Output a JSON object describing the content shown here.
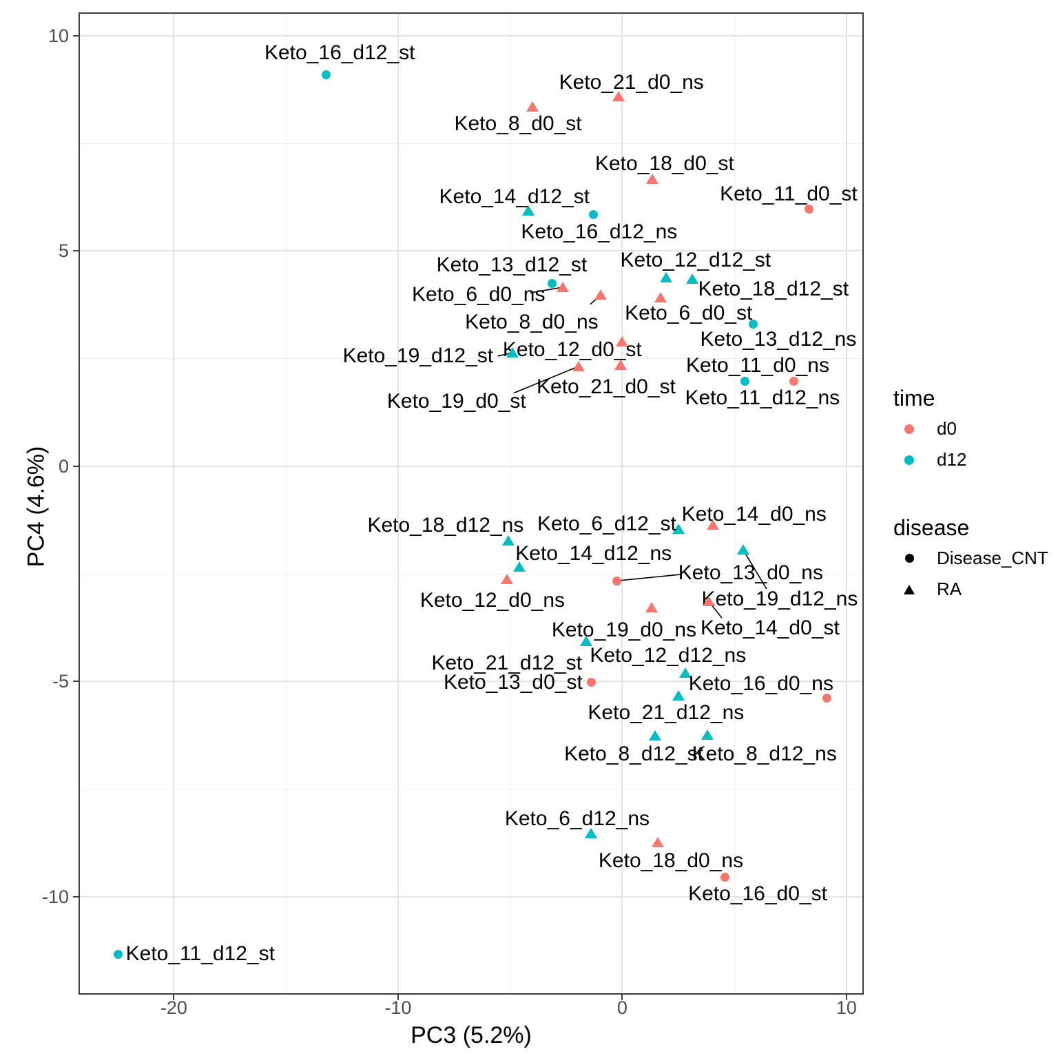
{
  "chart_data": {
    "type": "scatter",
    "xlabel": "PC3 (5.2%)",
    "ylabel": "PC4 (4.6%)",
    "xlim": [
      -24.19,
      10.71
    ],
    "ylim": [
      -12.24,
      10.51
    ],
    "x_major_ticks": [
      -20,
      -10,
      0,
      10
    ],
    "y_major_ticks": [
      10,
      5,
      0,
      -5,
      -10
    ],
    "x_minor_ticks": [
      -15,
      -5,
      5
    ],
    "y_minor_ticks": [
      7.5,
      2.5,
      -2.5,
      -7.5
    ],
    "grid": true,
    "legend_position": "right",
    "colors": {
      "d0": "#F8766D",
      "d12": "#00BFC4"
    },
    "points": [
      {
        "id": "Keto_16_d12_st",
        "pc3": -13.2,
        "pc4": 9.1,
        "time": "d12",
        "disease": "Disease_CNT",
        "label": {
          "x": -12.6,
          "y": 9.6
        }
      },
      {
        "id": "Keto_21_d0_ns",
        "pc3": -0.17,
        "pc4": 8.59,
        "time": "d0",
        "disease": "RA",
        "label": {
          "x": 0.41,
          "y": 8.91
        }
      },
      {
        "id": "Keto_8_d0_st",
        "pc3": -4.01,
        "pc4": 8.35,
        "time": "d0",
        "disease": "RA",
        "label": {
          "x": -4.65,
          "y": 7.95
        }
      },
      {
        "id": "Keto_18_d0_st",
        "pc3": 1.34,
        "pc4": 6.67,
        "time": "d0",
        "disease": "RA",
        "label": {
          "x": 1.89,
          "y": 7.02
        }
      },
      {
        "id": "Keto_11_d0_st",
        "pc3": 8.34,
        "pc4": 5.97,
        "time": "d0",
        "disease": "Disease_CNT",
        "label": {
          "x": 7.42,
          "y": 6.32
        }
      },
      {
        "id": "Keto_14_d12_st",
        "pc3": -4.19,
        "pc4": 5.94,
        "time": "d12",
        "disease": "RA",
        "label": {
          "x": -4.81,
          "y": 6.26
        }
      },
      {
        "id": "Keto_16_d12_ns",
        "pc3": -1.28,
        "pc4": 5.84,
        "time": "d12",
        "disease": "Disease_CNT",
        "label": {
          "x": -1.03,
          "y": 5.44
        }
      },
      {
        "id": "Keto_13_d12_st",
        "pc3": -3.13,
        "pc4": 4.24,
        "time": "d12",
        "disease": "Disease_CNT",
        "label": {
          "x": -4.93,
          "y": 4.67
        }
      },
      {
        "id": "Keto_6_d0_ns",
        "pc3": -2.64,
        "pc4": 4.16,
        "time": "d0",
        "disease": "RA",
        "label": {
          "x": -6.41,
          "y": 3.98
        }
      },
      {
        "id": "Keto_8_d0_ns",
        "pc3": -0.95,
        "pc4": 3.98,
        "time": "d0",
        "disease": "RA",
        "label": {
          "x": -4.04,
          "y": 3.34
        }
      },
      {
        "id": "Keto_12_d12_st",
        "pc3": 1.95,
        "pc4": 4.38,
        "time": "d12",
        "disease": "RA",
        "label": {
          "x": 3.27,
          "y": 4.78
        }
      },
      {
        "id": "Keto_18_d12_st",
        "pc3": 3.12,
        "pc4": 4.35,
        "time": "d12",
        "disease": "RA",
        "label": {
          "x": 6.74,
          "y": 4.11
        }
      },
      {
        "id": "Keto_6_d0_st",
        "pc3": 1.71,
        "pc4": 3.92,
        "time": "d0",
        "disease": "RA",
        "label": {
          "x": 2.96,
          "y": 3.55
        }
      },
      {
        "id": "Keto_13_d12_ns",
        "pc3": 5.85,
        "pc4": 3.31,
        "time": "d12",
        "disease": "Disease_CNT",
        "label": {
          "x": 6.96,
          "y": 2.94
        }
      },
      {
        "id": "Keto_12_d0_st",
        "pc3": -0.02,
        "pc4": 2.89,
        "time": "d0",
        "disease": "RA",
        "label": {
          "x": -2.23,
          "y": 2.7
        }
      },
      {
        "id": "Keto_19_d12_st",
        "pc3": -4.9,
        "pc4": 2.64,
        "time": "d12",
        "disease": "RA",
        "label": {
          "x": -9.11,
          "y": 2.56
        }
      },
      {
        "id": "Keto_21_d0_st",
        "pc3": -0.06,
        "pc4": 2.35,
        "time": "d0",
        "disease": "RA",
        "label": {
          "x": -0.72,
          "y": 1.84
        }
      },
      {
        "id": "Keto_19_d0_st",
        "pc3": -1.95,
        "pc4": 2.32,
        "time": "d0",
        "disease": "RA",
        "label": {
          "x": -7.39,
          "y": 1.5
        }
      },
      {
        "id": "Keto_11_d0_ns",
        "pc3": 7.66,
        "pc4": 1.98,
        "time": "d0",
        "disease": "Disease_CNT",
        "label": {
          "x": 6.04,
          "y": 2.34
        }
      },
      {
        "id": "Keto_11_d12_ns",
        "pc3": 5.48,
        "pc4": 1.98,
        "time": "d12",
        "disease": "Disease_CNT",
        "label": {
          "x": 6.25,
          "y": 1.58
        }
      },
      {
        "id": "Keto_14_d0_ns",
        "pc3": 4.04,
        "pc4": -1.36,
        "time": "d0",
        "disease": "RA",
        "label": {
          "x": 5.88,
          "y": -1.12
        }
      },
      {
        "id": "Keto_6_d12_st",
        "pc3": 2.5,
        "pc4": -1.46,
        "time": "d12",
        "disease": "RA",
        "label": {
          "x": -0.69,
          "y": -1.34
        }
      },
      {
        "id": "Keto_18_d12_ns",
        "pc3": -5.08,
        "pc4": -1.73,
        "time": "d12",
        "disease": "RA",
        "label": {
          "x": -7.88,
          "y": -1.38
        }
      },
      {
        "id": "Keto_14_d12_ns",
        "pc3": -4.59,
        "pc4": -2.34,
        "time": "d12",
        "disease": "RA",
        "label": {
          "x": -1.28,
          "y": -2.03
        }
      },
      {
        "id": "Keto_12_d0_ns",
        "pc3": -5.15,
        "pc4": -2.62,
        "time": "d0",
        "disease": "RA",
        "label": {
          "x": -5.79,
          "y": -3.12
        }
      },
      {
        "id": "Keto_13_d0_ns",
        "pc3": -0.23,
        "pc4": -2.66,
        "time": "d0",
        "disease": "Disease_CNT",
        "label": {
          "x": 5.73,
          "y": -2.48
        }
      },
      {
        "id": "Keto_19_d12_ns",
        "pc3": 5.39,
        "pc4": -1.94,
        "time": "d12",
        "disease": "RA",
        "label": {
          "x": 7.02,
          "y": -3.09
        }
      },
      {
        "id": "Keto_14_d0_st",
        "pc3": 3.86,
        "pc4": -3.14,
        "time": "d0",
        "disease": "RA",
        "label": {
          "x": 6.59,
          "y": -3.76
        }
      },
      {
        "id": "Keto_19_d0_ns",
        "pc3": 1.31,
        "pc4": -3.28,
        "time": "d0",
        "disease": "RA",
        "label": {
          "x": 0.08,
          "y": -3.81
        }
      },
      {
        "id": "Keto_21_d12_st",
        "pc3": -1.61,
        "pc4": -4.06,
        "time": "d12",
        "disease": "RA",
        "label": {
          "x": -5.15,
          "y": -4.58
        }
      },
      {
        "id": "Keto_12_d12_ns",
        "pc3": 2.81,
        "pc4": -4.8,
        "time": "d12",
        "disease": "RA",
        "label": {
          "x": 2.04,
          "y": -4.4
        }
      },
      {
        "id": "Keto_13_d0_st",
        "pc3": -1.37,
        "pc4": -5.02,
        "time": "d0",
        "disease": "Disease_CNT",
        "label": {
          "x": -4.87,
          "y": -5.02
        }
      },
      {
        "id": "Keto_16_d0_ns",
        "pc3": 9.14,
        "pc4": -5.38,
        "time": "d0",
        "disease": "Disease_CNT",
        "label": {
          "x": 6.19,
          "y": -5.06
        }
      },
      {
        "id": "Keto_21_d12_ns",
        "pc3": 2.5,
        "pc4": -5.33,
        "time": "d12",
        "disease": "RA",
        "label": {
          "x": 1.95,
          "y": -5.73
        }
      },
      {
        "id": "Keto_8_d12_st",
        "pc3": 1.46,
        "pc4": -6.26,
        "time": "d12",
        "disease": "RA",
        "label": {
          "x": 0.51,
          "y": -6.69
        }
      },
      {
        "id": "Keto_8_d12_ns",
        "pc3": 3.79,
        "pc4": -6.24,
        "time": "d12",
        "disease": "RA",
        "label": {
          "x": 6.34,
          "y": -6.69
        }
      },
      {
        "id": "Keto_6_d12_ns",
        "pc3": -1.4,
        "pc4": -8.53,
        "time": "d12",
        "disease": "RA",
        "label": {
          "x": -2.01,
          "y": -8.19
        }
      },
      {
        "id": "Keto_18_d0_ns",
        "pc3": 1.58,
        "pc4": -8.74,
        "time": "d0",
        "disease": "RA",
        "label": {
          "x": 2.17,
          "y": -9.17
        }
      },
      {
        "id": "Keto_16_d0_st",
        "pc3": 4.59,
        "pc4": -9.55,
        "time": "d0",
        "disease": "Disease_CNT",
        "label": {
          "x": 6.04,
          "y": -9.94
        }
      },
      {
        "id": "Keto_11_d12_st",
        "pc3": -22.5,
        "pc4": -11.33,
        "time": "d12",
        "disease": "Disease_CNT",
        "label": {
          "x": -18.82,
          "y": -11.33
        }
      }
    ],
    "segments": [
      {
        "x1": -4.1,
        "y1": 4.03,
        "x2": -2.64,
        "y2": 4.16
      },
      {
        "x1": -1.43,
        "y1": 3.76,
        "x2": -0.95,
        "y2": 3.98
      },
      {
        "x1": -5.55,
        "y1": 2.56,
        "x2": -4.9,
        "y2": 2.64
      },
      {
        "x1": -4.84,
        "y1": 1.7,
        "x2": -1.95,
        "y2": 2.32
      },
      {
        "x1": -0.23,
        "y1": -2.66,
        "x2": 2.66,
        "y2": -2.51
      },
      {
        "x1": 5.39,
        "y1": -1.94,
        "x2": 6.44,
        "y2": -2.85
      },
      {
        "x1": 3.86,
        "y1": -3.14,
        "x2": 4.44,
        "y2": -3.52
      }
    ]
  },
  "legend": {
    "time": {
      "title": "time",
      "items": [
        {
          "label": "d0",
          "color": "#F8766D"
        },
        {
          "label": "d12",
          "color": "#00BFC4"
        }
      ]
    },
    "disease": {
      "title": "disease",
      "items": [
        {
          "label": "Disease_CNT",
          "shape": "circle"
        },
        {
          "label": "RA",
          "shape": "triangle"
        }
      ]
    }
  }
}
